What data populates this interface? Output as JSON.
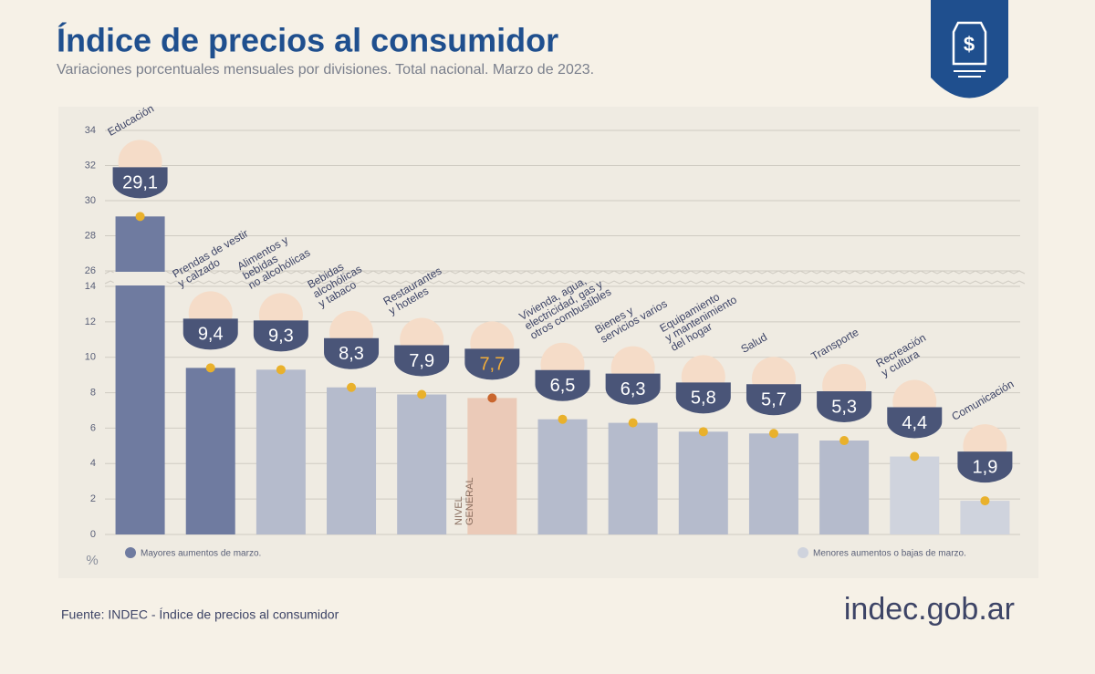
{
  "chart_data": {
    "type": "bar",
    "title": "Índice de precios al consumidor",
    "subtitle": "Variaciones porcentuales mensuales por divisiones. Total nacional. Marzo de 2023.",
    "y_label": "%",
    "categories": [
      "Educación",
      "Prendas de vestir\ny calzado",
      "Alimentos y\nbebidas\nno alcohólicas",
      "Bebidas\nalcohólicas\ny tabaco",
      "Restaurantes\ny hoteles",
      null,
      "Vivienda, agua,\nelectricidad, gas y\notros combustibles",
      "Bienes y\nservicios varios",
      "Equipamiento\ny mantenimiento\ndel hogar",
      "Salud",
      "Transporte",
      "Recreación\ny cultura",
      "Comunicación"
    ],
    "values": [
      29.1,
      9.4,
      9.3,
      8.3,
      7.9,
      7.7,
      6.5,
      6.3,
      5.8,
      5.7,
      5.3,
      4.4,
      1.9
    ],
    "value_labels": [
      "29,1",
      "9,4",
      "9,3",
      "8,3",
      "7,9",
      "7,7",
      "6,5",
      "6,3",
      "5,8",
      "5,7",
      "5,3",
      "4,4",
      "1,9"
    ],
    "colors": [
      "#6f7ba0",
      "#6f7ba0",
      "#b5bbcc",
      "#b5bbcc",
      "#b5bbcc",
      "#ebcab8",
      "#b5bbcc",
      "#b5bbcc",
      "#b5bbcc",
      "#b5bbcc",
      "#b5bbcc",
      "#cfd3dd",
      "#cfd3dd"
    ],
    "annotation": "NIVEL\nGENERAL",
    "ylim": [
      0,
      34
    ],
    "axis_break": [
      14,
      26
    ],
    "yticks": [
      0,
      2,
      4,
      6,
      8,
      10,
      12,
      14,
      26,
      28,
      30,
      32,
      34
    ],
    "grid": true,
    "legend": [
      {
        "label": "Mayores aumentos de marzo.",
        "color": "#6f7ba0"
      },
      {
        "label": "Menores aumentos o bajas de marzo.",
        "color": "#cfd3dd"
      }
    ],
    "source": "Fuente: INDEC - Índice de precios al consumidor",
    "brand": "indec.gob.ar"
  }
}
